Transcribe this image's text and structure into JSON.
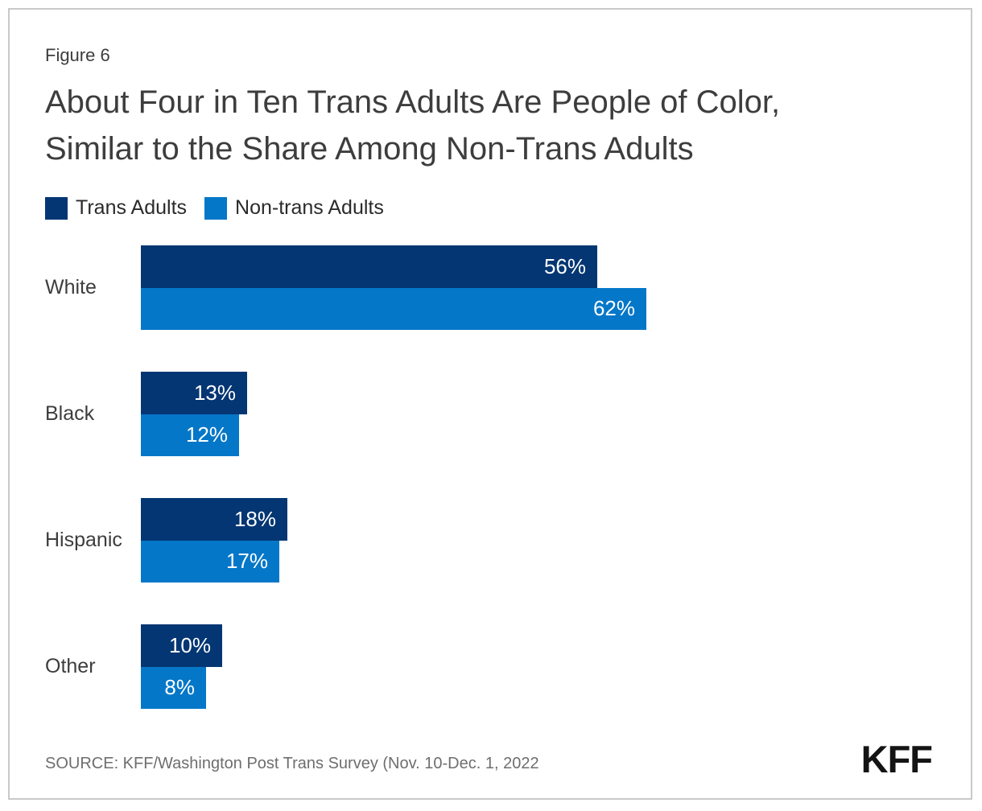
{
  "figure_label": "Figure 6",
  "title_lines": [
    "About Four in Ten Trans Adults Are People of Color,",
    "Similar to the Share Among Non-Trans Adults"
  ],
  "legend": {
    "items": [
      {
        "label": "Trans Adults",
        "color": "#043673"
      },
      {
        "label": "Non-trans Adults",
        "color": "#0577C8"
      }
    ]
  },
  "chart_data": {
    "type": "bar",
    "orientation": "horizontal",
    "title": "About Four in Ten Trans Adults Are People of Color, Similar to the Share Among Non-Trans Adults",
    "categories": [
      "White",
      "Black",
      "Hispanic",
      "Other"
    ],
    "series": [
      {
        "name": "Trans Adults",
        "color": "#043673",
        "values": [
          56,
          13,
          18,
          10
        ]
      },
      {
        "name": "Non-trans Adults",
        "color": "#0577C8",
        "values": [
          62,
          12,
          17,
          8
        ]
      }
    ],
    "value_suffix": "%",
    "xlim": [
      0,
      100
    ],
    "grid": false,
    "axes_visible": false,
    "legend_position": "top-left",
    "value_labels": "inside-end"
  },
  "source": "SOURCE: KFF/Washington Post Trans Survey (Nov. 10-Dec. 1, 2022",
  "logo_text": "KFF"
}
